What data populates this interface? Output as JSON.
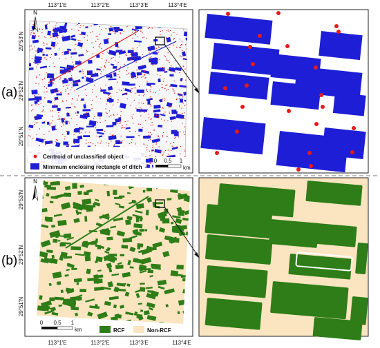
{
  "panels": [
    {
      "label": "(a)",
      "top_coords": [
        "113°1'E",
        "113°2'E",
        "113°3'E",
        "113°4'E"
      ],
      "left_coords": [
        "29°53'N",
        "29°52'N",
        "29°51'N"
      ],
      "north_symbol": "N",
      "legend": {
        "items": [
          {
            "label": "Centroid of unclassified object",
            "color": "#e41a1c",
            "symbol": "dot"
          },
          {
            "label": "Minimum enclosing rectangle of ditch",
            "color": "#1e1ed6",
            "symbol": "rect"
          }
        ]
      },
      "scale_bar": {
        "ticks": [
          "0",
          "0.5",
          "1"
        ],
        "unit": "km"
      }
    },
    {
      "label": "(b)",
      "bottom_coords": [
        "113°1'E",
        "113°2'E",
        "113°3'E",
        "113°4'E"
      ],
      "left_coords": [
        "29°53'N",
        "29°52'N",
        "29°51'N"
      ],
      "north_symbol": "N",
      "legend": {
        "items": [
          {
            "label": "RCF",
            "color": "#2e7d18",
            "symbol": "rect"
          },
          {
            "label": "Non-RCF",
            "color": "#fae5c0",
            "symbol": "rect"
          }
        ]
      },
      "scale_bar": {
        "ticks": [
          "0",
          "0.5",
          "1"
        ],
        "unit": "km"
      }
    }
  ],
  "colors": {
    "ditch_blue": "#1e1ed6",
    "centroid_red": "#e41a1c",
    "rcf_green": "#2e7d18",
    "non_rcf": "#fae5c0"
  }
}
